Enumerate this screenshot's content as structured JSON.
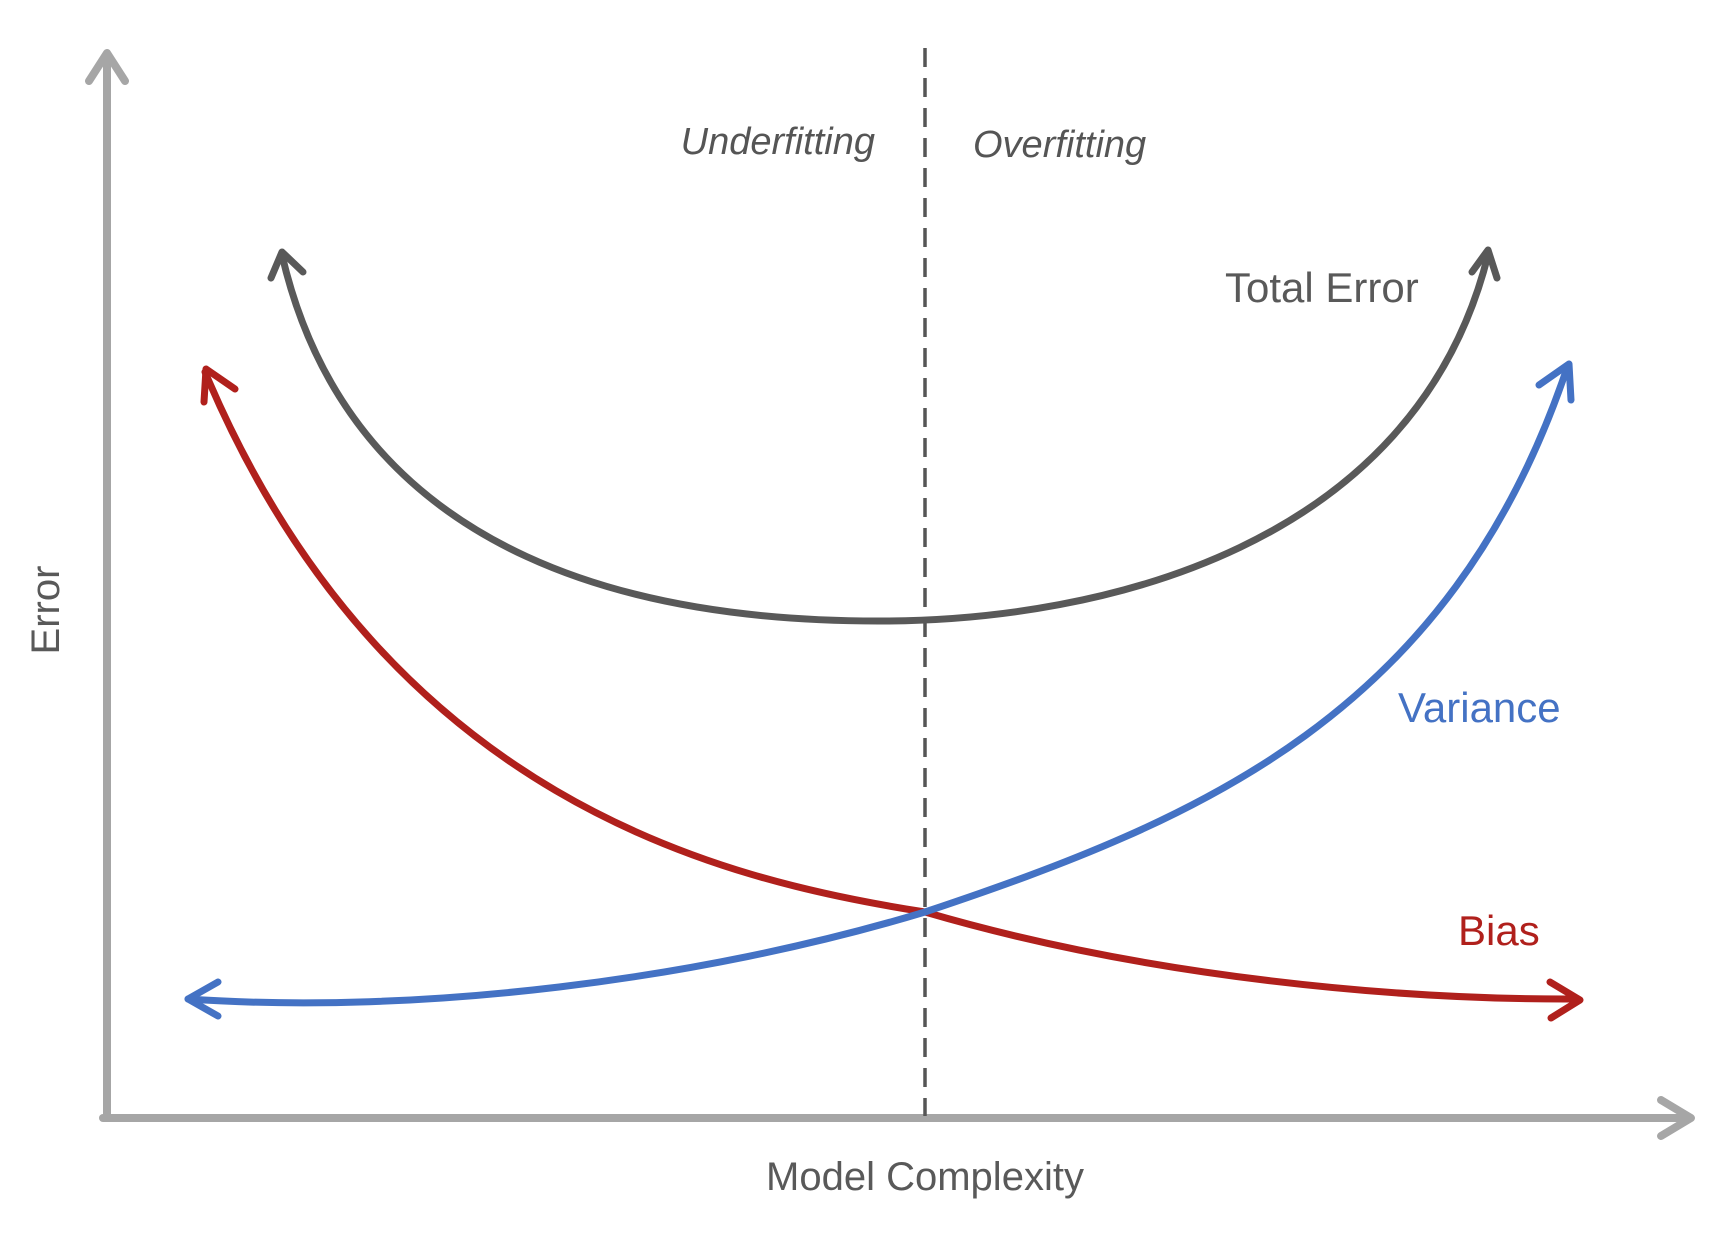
{
  "diagram": {
    "axes": {
      "x_label": "Model Complexity",
      "y_label": "Error",
      "color": "#a6a6a6"
    },
    "regions": {
      "left_label": "Underfitting",
      "right_label": "Overfitting",
      "divider_color": "#555555"
    },
    "curves": {
      "total_error": {
        "label": "Total Error",
        "color": "#595959"
      },
      "variance": {
        "label": "Variance",
        "color": "#4472c4"
      },
      "bias": {
        "label": "Bias",
        "color": "#b0201c"
      }
    }
  }
}
